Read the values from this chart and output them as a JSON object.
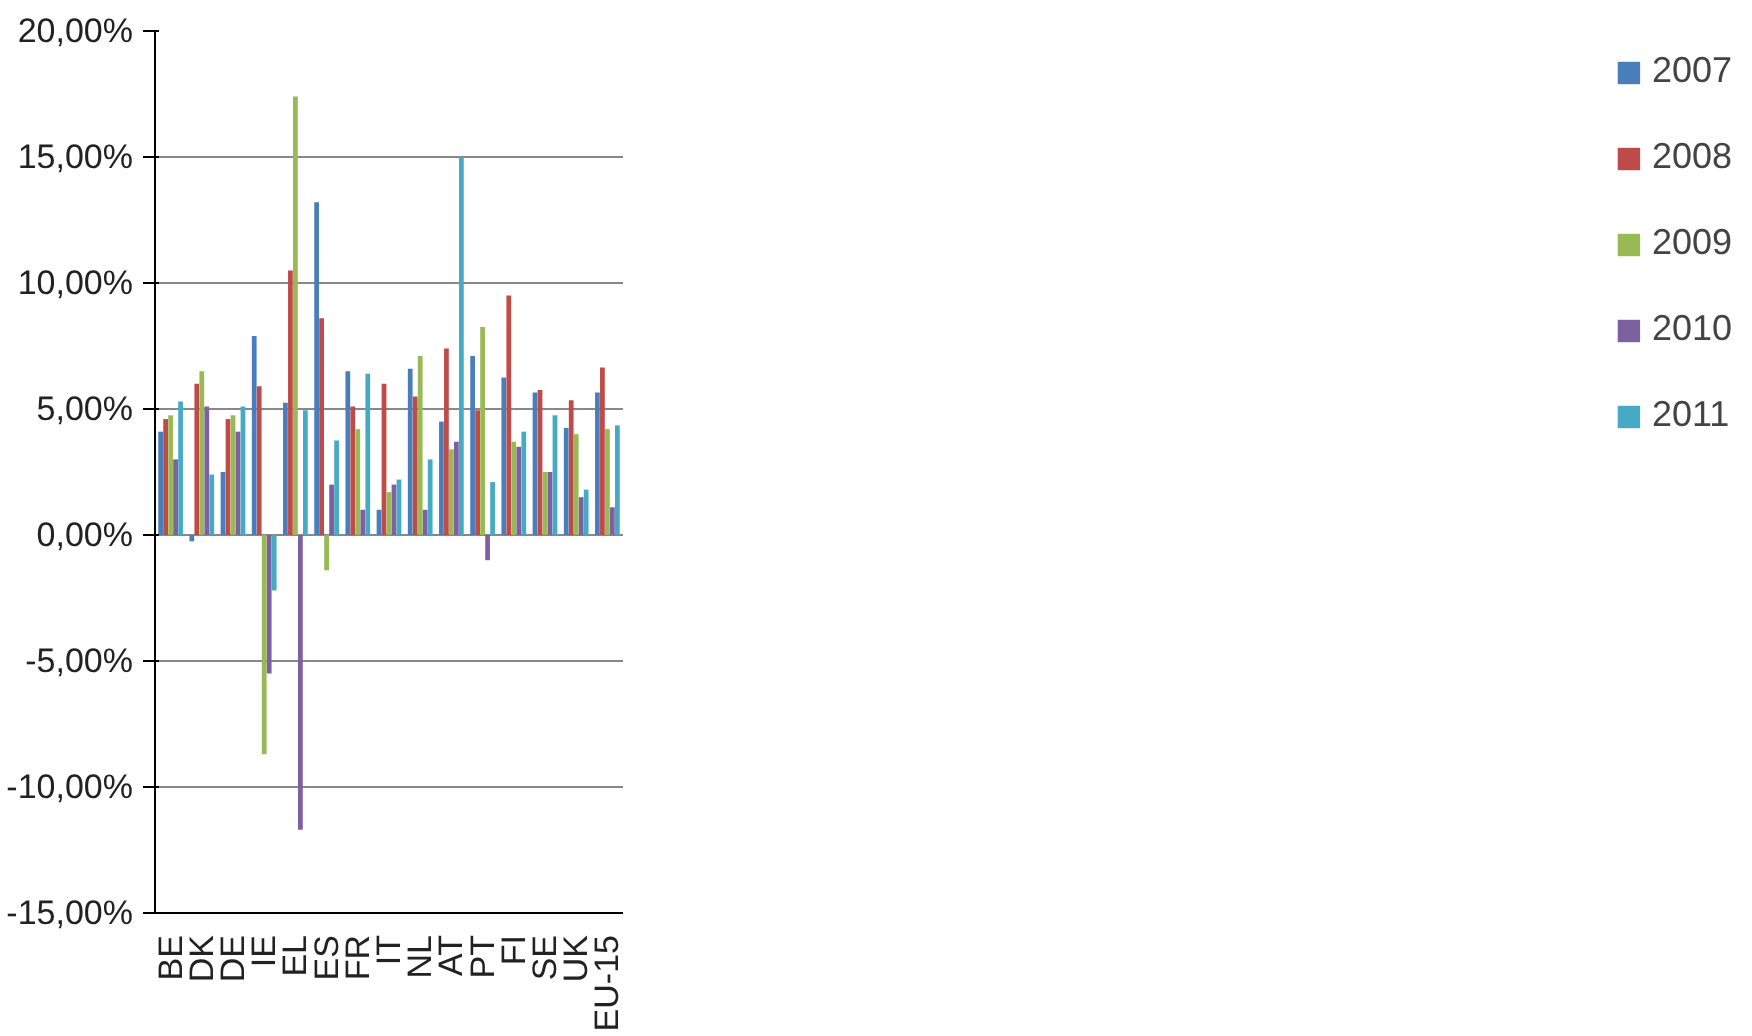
{
  "chart_data": {
    "type": "bar",
    "categories": [
      "BE",
      "DK",
      "DE",
      "IE",
      "EL",
      "ES",
      "FR",
      "IT",
      "NL",
      "AT",
      "PT",
      "FI",
      "SE",
      "UK",
      "EU-15"
    ],
    "series": [
      {
        "name": "2007",
        "color": "#4a7ebb",
        "values": [
          4.1,
          -0.25,
          2.5,
          7.9,
          5.25,
          13.2,
          6.5,
          1.0,
          6.6,
          4.5,
          7.1,
          6.25,
          5.65,
          4.25,
          5.65
        ]
      },
      {
        "name": "2008",
        "color": "#be4b48",
        "values": [
          4.6,
          6.0,
          4.6,
          5.9,
          10.5,
          8.6,
          5.1,
          6.0,
          5.5,
          7.4,
          4.95,
          9.5,
          5.75,
          5.35,
          6.65
        ]
      },
      {
        "name": "2009",
        "color": "#98b954",
        "values": [
          4.75,
          6.5,
          4.75,
          -8.7,
          17.4,
          -1.4,
          4.2,
          1.7,
          7.1,
          3.4,
          8.25,
          3.7,
          2.5,
          4.0,
          4.2
        ]
      },
      {
        "name": "2010",
        "color": "#7d60a0",
        "values": [
          3.0,
          5.1,
          4.1,
          -5.5,
          -11.7,
          2.0,
          1.0,
          2.0,
          1.0,
          3.7,
          -1.0,
          3.5,
          2.5,
          1.5,
          1.1
        ]
      },
      {
        "name": "2011",
        "color": "#46aac5",
        "values": [
          5.3,
          2.4,
          5.1,
          -2.2,
          4.95,
          3.75,
          6.4,
          2.2,
          3.0,
          15.0,
          2.1,
          4.1,
          4.75,
          1.8,
          4.35
        ]
      }
    ],
    "ylim": [
      -15,
      20
    ],
    "yticks": [
      {
        "value": -15,
        "label": "-15,00%"
      },
      {
        "value": -10,
        "label": "-10,00%"
      },
      {
        "value": -5,
        "label": "-5,00%"
      },
      {
        "value": 0,
        "label": "0,00%"
      },
      {
        "value": 5,
        "label": "5,00%"
      },
      {
        "value": 10,
        "label": "10,00%"
      },
      {
        "value": 15,
        "label": "15,00%"
      },
      {
        "value": 20,
        "label": "20,00%"
      }
    ],
    "grid": "y",
    "legend": "right"
  }
}
